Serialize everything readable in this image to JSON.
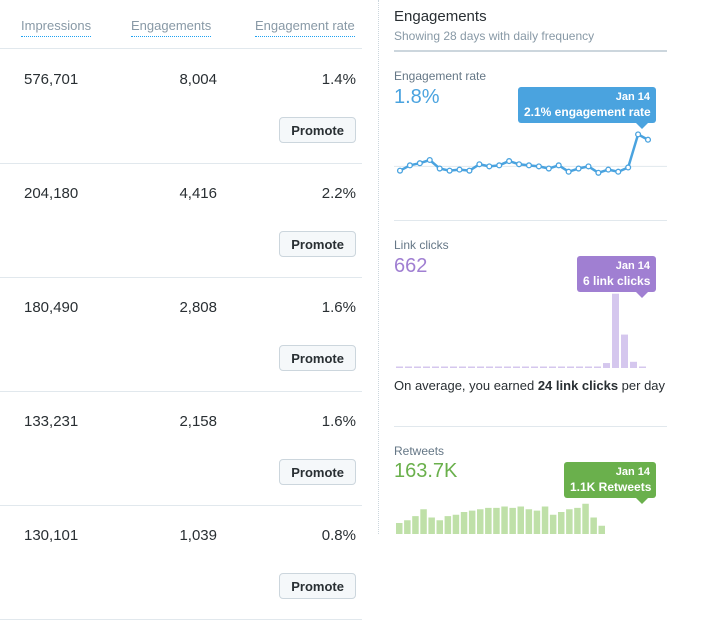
{
  "table": {
    "headers": {
      "impressions": "Impressions",
      "engagements": "Engagements",
      "engagement_rate": "Engagement rate"
    },
    "promote_label": "Promote",
    "rows": [
      {
        "impressions": "576,701",
        "engagements": "8,004",
        "rate": "1.4%"
      },
      {
        "impressions": "204,180",
        "engagements": "4,416",
        "rate": "2.2%"
      },
      {
        "impressions": "180,490",
        "engagements": "2,808",
        "rate": "1.6%"
      },
      {
        "impressions": "133,231",
        "engagements": "2,158",
        "rate": "1.6%"
      },
      {
        "impressions": "130,101",
        "engagements": "1,039",
        "rate": "0.8%"
      }
    ]
  },
  "panel": {
    "title": "Engagements",
    "subtitle": "Showing 28 days with daily frequency",
    "engagement_rate": {
      "label": "Engagement rate",
      "value": "1.8%",
      "tooltip_date": "Jan 14",
      "tooltip_text": "2.1% engagement rate",
      "color": "#4aa3df"
    },
    "link_clicks": {
      "label": "Link clicks",
      "value": "662",
      "tooltip_date": "Jan 14",
      "tooltip_text": "6 link clicks",
      "color": "#a07fd2",
      "note_prefix": "On average, you earned ",
      "note_bold": "24 link clicks",
      "note_suffix": " per day"
    },
    "retweets": {
      "label": "Retweets",
      "value": "163.7K",
      "tooltip_date": "Jan 14",
      "tooltip_text": "1.1K Retweets",
      "color": "#6ab04c"
    }
  },
  "chart_data": [
    {
      "type": "line",
      "series": [
        {
          "values": [
            1.0,
            1.25,
            1.35,
            1.5,
            1.1,
            1.0,
            1.05,
            1.0,
            1.3,
            1.2,
            1.25,
            1.45,
            1.3,
            1.25,
            1.2,
            1.1,
            1.25,
            0.95,
            1.1,
            1.2,
            0.9,
            1.05,
            0.95,
            1.15,
            2.7,
            2.45
          ]
        }
      ],
      "ylim": [
        0,
        3
      ],
      "grid": false
    },
    {
      "type": "bar",
      "series": [
        {
          "values": [
            0.05,
            0.05,
            0.05,
            0.05,
            0.05,
            0.05,
            0.05,
            0.05,
            0.05,
            0.05,
            0.05,
            0.05,
            0.05,
            0.05,
            0.05,
            0.05,
            0.05,
            0.05,
            0.05,
            0.05,
            0.05,
            0.05,
            0.05,
            0.4,
            6,
            2.7,
            0.5,
            0.1
          ]
        }
      ],
      "ylim": [
        0,
        6.3
      ]
    },
    {
      "type": "bar",
      "series": [
        {
          "values": [
            0.4,
            0.5,
            0.65,
            0.9,
            0.6,
            0.5,
            0.65,
            0.7,
            0.8,
            0.85,
            0.9,
            0.95,
            0.95,
            1.0,
            0.95,
            1.0,
            0.9,
            0.85,
            1.0,
            0.7,
            0.8,
            0.9,
            0.95,
            1.1,
            0.6,
            0.3
          ]
        }
      ],
      "ylim": [
        0,
        1.6
      ]
    }
  ]
}
